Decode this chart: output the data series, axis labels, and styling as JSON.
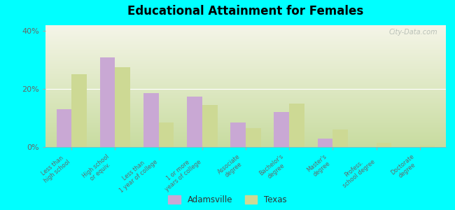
{
  "title": "Educational Attainment for Females",
  "categories": [
    "Less than\nhigh school",
    "High school\nor equiv.",
    "Less than\n1 year of college",
    "1 or more\nyears of college",
    "Associate\ndegree",
    "Bachelor's\ndegree",
    "Master's\ndegree",
    "Profess.\nschool degree",
    "Doctorate\ndegree"
  ],
  "adamsville": [
    13.0,
    31.0,
    18.5,
    17.5,
    8.5,
    12.0,
    3.0,
    0.0,
    0.0
  ],
  "texas": [
    25.0,
    27.5,
    8.5,
    14.5,
    6.5,
    15.0,
    6.0,
    1.5,
    0.5
  ],
  "adamsville_color": "#c9a8d4",
  "texas_color": "#cdd994",
  "background_top": "#f5f5e8",
  "background_bottom": "#c8dca0",
  "outer_background": "#00ffff",
  "ylim": [
    0,
    42
  ],
  "yticks": [
    0,
    20,
    40
  ],
  "ytick_labels": [
    "0%",
    "20%",
    "40%"
  ],
  "bar_width": 0.35,
  "legend_adamsville": "Adamsville",
  "legend_texas": "Texas"
}
